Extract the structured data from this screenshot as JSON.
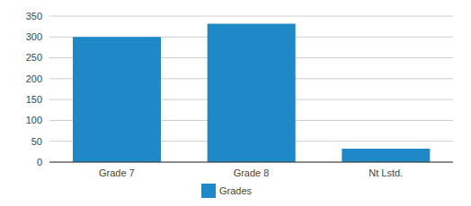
{
  "chart_data": {
    "type": "bar",
    "categories": [
      "Grade 7",
      "Grade 8",
      "Nt Lstd."
    ],
    "series": [
      {
        "name": "Grades",
        "color": "#1f88c6",
        "values": [
          300,
          332,
          32
        ]
      }
    ],
    "ylim": [
      0,
      350
    ],
    "yticks": [
      0,
      50,
      100,
      150,
      200,
      250,
      300,
      350
    ],
    "grid": true,
    "legend": "bottom"
  }
}
